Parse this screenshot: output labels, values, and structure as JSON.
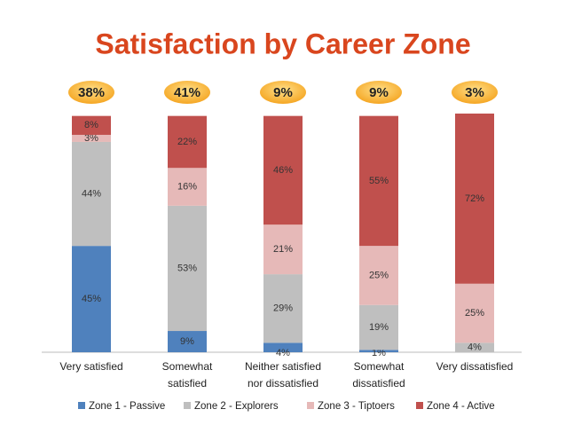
{
  "chart_data": {
    "type": "stacked_bar",
    "title": "Satisfaction by Career Zone",
    "annotations": [
      "38%",
      "41%",
      "9%",
      "9%",
      "3%"
    ],
    "categories": [
      "Very satisfied",
      "Somewhat satisfied",
      "Neither satisfied nor dissatisfied",
      "Somewhat dissatisfied",
      "Very dissatisfied"
    ],
    "series": [
      {
        "name": "Zone 1 - Passive",
        "color": "#4f81bd",
        "values": [
          45,
          9,
          4,
          1,
          0
        ],
        "value_labels": [
          "45%",
          "9%",
          "4%",
          "1%",
          null
        ]
      },
      {
        "name": "Zone 2 - Explorers",
        "color": "#bfbfbf",
        "values": [
          44,
          53,
          29,
          19,
          4
        ],
        "value_labels": [
          "44%",
          "53%",
          "29%",
          "19%",
          "4%"
        ]
      },
      {
        "name": "Zone 3 - Tiptoers",
        "color": "#e6b9b8",
        "values": [
          3,
          16,
          21,
          25,
          25
        ],
        "value_labels": [
          "3%",
          "16%",
          "21%",
          "25%",
          "25%"
        ]
      },
      {
        "name": "Zone 4 - Active",
        "color": "#c0504d",
        "values": [
          8,
          22,
          46,
          55,
          72
        ],
        "value_labels": [
          "8%",
          "22%",
          "46%",
          "55%",
          "72%"
        ]
      }
    ]
  }
}
